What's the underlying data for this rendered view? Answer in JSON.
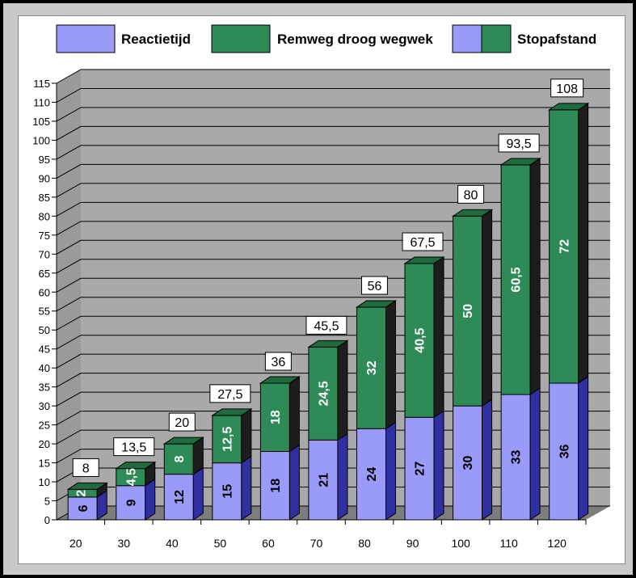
{
  "colors": {
    "reaction": "#9a9af8",
    "reaction_side": "#2f2fa0",
    "reaction_top": "#6a6ad8",
    "braking": "#2e8a57",
    "braking_side": "#1d1d1d",
    "braking_top": "#1f6a3e",
    "wall": "#a9a9a9",
    "floor": "#7d7d7d",
    "left_wall": "#9a9a9a"
  },
  "legend": [
    {
      "name": "Reactietijd",
      "type": "reaction"
    },
    {
      "name": "Remweg droog wegwek",
      "type": "braking"
    },
    {
      "name": "Stopafstand",
      "type": "total"
    }
  ],
  "chart_data": {
    "type": "bar",
    "stacked": true,
    "three_d": true,
    "title": "",
    "xlabel": "",
    "ylabel": "",
    "categories": [
      "20",
      "30",
      "40",
      "50",
      "60",
      "70",
      "80",
      "90",
      "100",
      "110",
      "120"
    ],
    "series": [
      {
        "name": "Reactietijd",
        "values": [
          6,
          9,
          12,
          15,
          18,
          21,
          24,
          27,
          30,
          33,
          36
        ],
        "labels": [
          "6",
          "9",
          "12",
          "15",
          "18",
          "21",
          "24",
          "27",
          "30",
          "33",
          "36"
        ]
      },
      {
        "name": "Remweg droog wegwek",
        "values": [
          2,
          4.5,
          8,
          12.5,
          18,
          24.5,
          32,
          40.5,
          50,
          60.5,
          72
        ],
        "labels": [
          "2",
          "4,5",
          "8",
          "12,5",
          "18",
          "24,5",
          "32",
          "40,5",
          "50",
          "60,5",
          "72"
        ]
      }
    ],
    "totals": {
      "name": "Stopafstand",
      "values": [
        8,
        13.5,
        20,
        27.5,
        36,
        45.5,
        56,
        67.5,
        80,
        93.5,
        108
      ],
      "labels": [
        "8",
        "13,5",
        "20",
        "27,5",
        "36",
        "45,5",
        "56",
        "67,5",
        "80",
        "93,5",
        "108"
      ]
    },
    "yticks": [
      "0",
      "5",
      "10",
      "15",
      "20",
      "25",
      "30",
      "35",
      "40",
      "45",
      "50",
      "55",
      "60",
      "65",
      "70",
      "75",
      "80",
      "85",
      "90",
      "95",
      "100",
      "105",
      "110",
      "115"
    ],
    "ylim": [
      0,
      115
    ],
    "grid": true,
    "legend_position": "top"
  }
}
